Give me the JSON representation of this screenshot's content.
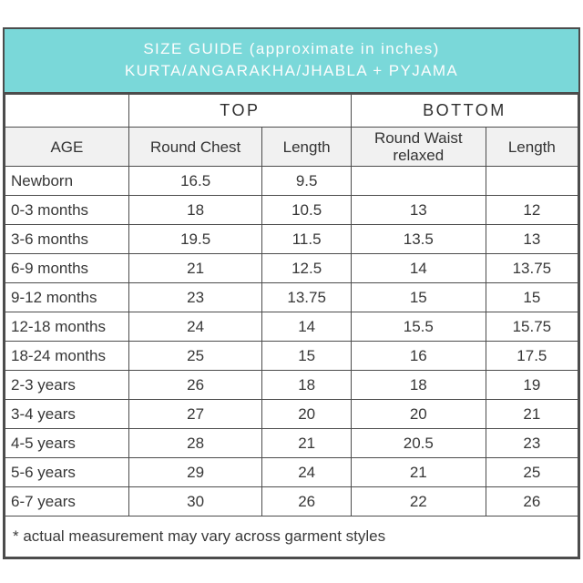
{
  "colors": {
    "accent_teal": "#7ad8d9",
    "header_row_bg": "#f1f1f1",
    "border": "#4c4c4c",
    "title_text": "#fdfdfd",
    "body_text": "#3a3a3a"
  },
  "chart_data": {
    "type": "table",
    "title": "SIZE GUIDE (approximate in inches)",
    "subtitle": "KURTA/ANGARAKHA/JHABLA + PYJAMA",
    "column_groups": [
      {
        "label": "TOP",
        "span": 2
      },
      {
        "label": "BOTTOM",
        "span": 2
      }
    ],
    "columns": [
      "AGE",
      "Round Chest",
      "Length",
      "Round Waist relaxed",
      "Length"
    ],
    "rows": [
      [
        "Newborn",
        "16.5",
        "9.5",
        "",
        ""
      ],
      [
        "0-3 months",
        "18",
        "10.5",
        "13",
        "12"
      ],
      [
        "3-6 months",
        "19.5",
        "11.5",
        "13.5",
        "13"
      ],
      [
        "6-9 months",
        "21",
        "12.5",
        "14",
        "13.75"
      ],
      [
        "9-12 months",
        "23",
        "13.75",
        "15",
        "15"
      ],
      [
        "12-18 months",
        "24",
        "14",
        "15.5",
        "15.75"
      ],
      [
        "18-24 months",
        "25",
        "15",
        "16",
        "17.5"
      ],
      [
        "2-3 years",
        "26",
        "18",
        "18",
        "19"
      ],
      [
        "3-4 years",
        "27",
        "20",
        "20",
        "21"
      ],
      [
        "4-5 years",
        "28",
        "21",
        "20.5",
        "23"
      ],
      [
        "5-6 years",
        "29",
        "24",
        "21",
        "25"
      ],
      [
        "6-7 years",
        "30",
        "26",
        "22",
        "26"
      ]
    ],
    "footnote": "* actual measurement may vary across garment styles"
  }
}
